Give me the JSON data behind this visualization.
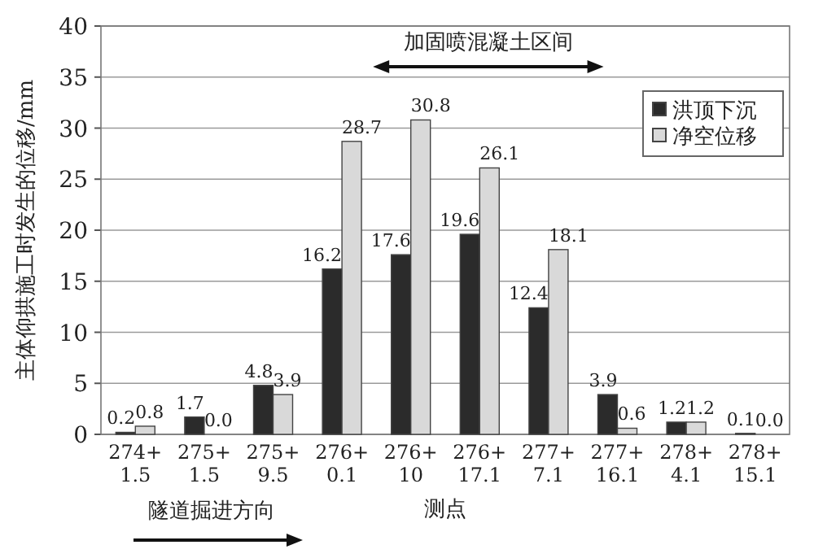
{
  "chart_data": {
    "type": "bar",
    "categories": [
      "274+\n1.5",
      "275+\n1.5",
      "275+\n9.5",
      "276+\n0.1",
      "276+\n10",
      "276+\n17.1",
      "277+\n7.1",
      "277+\n16.1",
      "278+\n4.1",
      "278+\n15.1"
    ],
    "series": [
      {
        "name": "洪顶下沉",
        "color": "#2b2b2b",
        "values": [
          0.2,
          1.7,
          4.8,
          16.2,
          17.6,
          19.6,
          12.4,
          3.9,
          1.2,
          0.1
        ],
        "value_labels": [
          "0.2",
          "1.7",
          "4.8",
          "16.2",
          "17.6",
          "19.6",
          "12.4",
          "3.9",
          "1.2",
          "0.1"
        ]
      },
      {
        "name": "净空位移",
        "color": "#d9d9d9",
        "values": [
          0.8,
          0.0,
          3.9,
          28.7,
          30.8,
          26.1,
          18.1,
          0.6,
          1.2,
          0.0
        ],
        "value_labels": [
          "0.8",
          "0.0",
          "3.9",
          "28.7",
          "30.8",
          "26.1",
          "18.1",
          "0.6",
          "1.2",
          "0.0"
        ]
      }
    ],
    "xlabel": "测点",
    "ylabel": "主体仰拱施工时发生的位移/mm",
    "ylim": [
      0,
      40
    ],
    "yticks": [
      0,
      5,
      10,
      15,
      20,
      25,
      30,
      35,
      40
    ],
    "grid": "y",
    "legend": "top right",
    "annotations": [
      "加固喷混凝土区间",
      "隧道掘进方向"
    ]
  }
}
